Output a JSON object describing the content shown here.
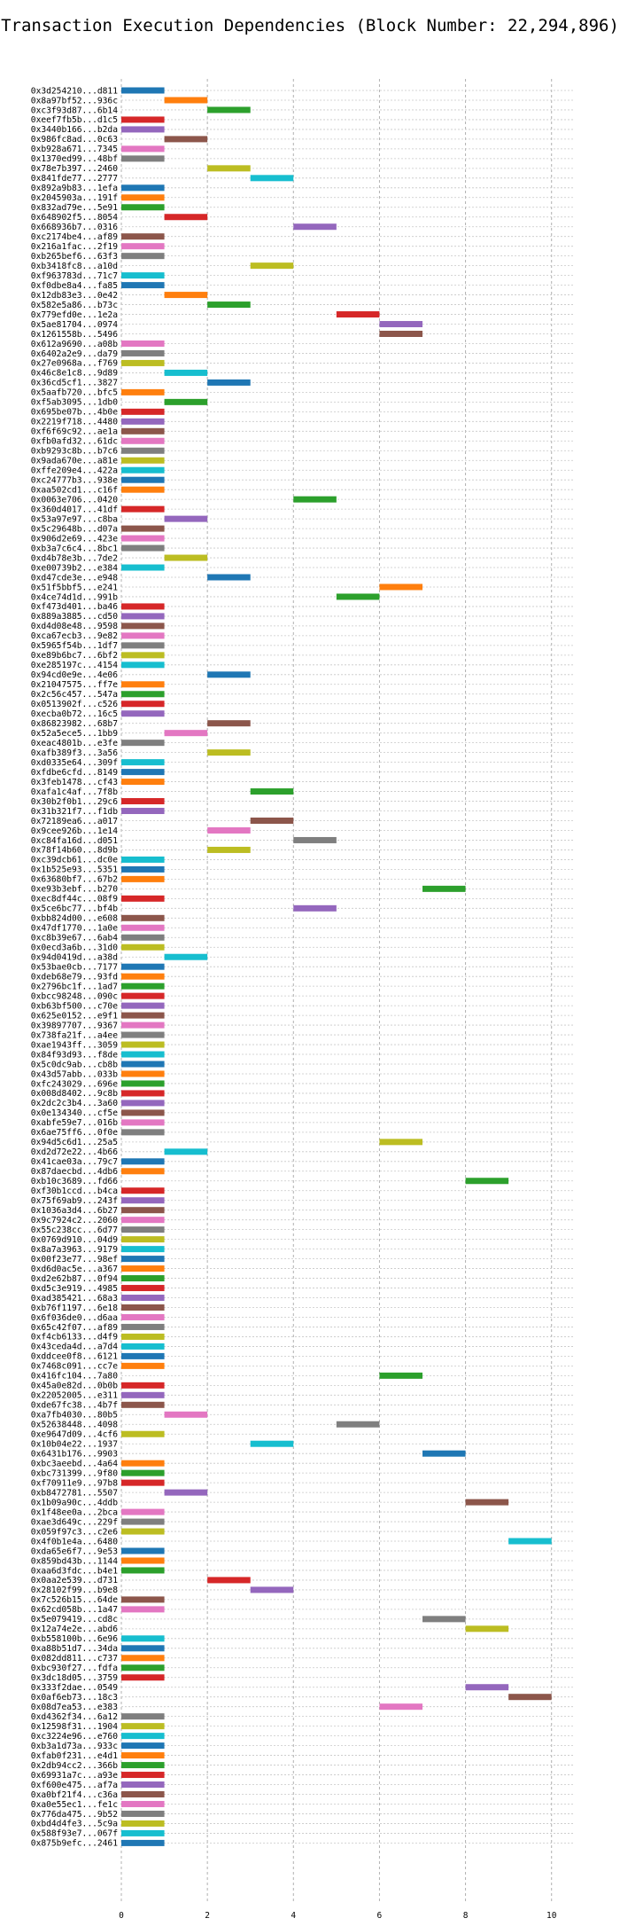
{
  "chart_data": {
    "type": "bar",
    "orientation": "horizontal-gantt",
    "title": "Transaction Execution Dependencies (Block Number: 22,294,896)",
    "xlabel": "",
    "ylabel": "",
    "xlim": [
      0,
      10.5
    ],
    "xticks": [
      0,
      2,
      4,
      6,
      8,
      10
    ],
    "grid": "vertical dashed",
    "palette": [
      "#1f77b4",
      "#ff7f0e",
      "#2ca02c",
      "#d62728",
      "#9467bd",
      "#8c564b",
      "#e377c2",
      "#7f7f7f",
      "#bcbd22",
      "#17becf"
    ],
    "transactions": [
      {
        "label": "0x3d254210...d811",
        "start": 0,
        "end": 1
      },
      {
        "label": "0x8a97bf52...936c",
        "start": 1,
        "end": 2
      },
      {
        "label": "0xc3f93d87...6b14",
        "start": 2,
        "end": 3
      },
      {
        "label": "0xeef7fb5b...d1c5",
        "start": 0,
        "end": 1
      },
      {
        "label": "0x3440b166...b2da",
        "start": 0,
        "end": 1
      },
      {
        "label": "0x986fc8ad...0c63",
        "start": 1,
        "end": 2
      },
      {
        "label": "0xb928a671...7345",
        "start": 0,
        "end": 1
      },
      {
        "label": "0x1370ed99...48bf",
        "start": 0,
        "end": 1
      },
      {
        "label": "0x78e7b397...2460",
        "start": 2,
        "end": 3
      },
      {
        "label": "0x841fde77...2777",
        "start": 3,
        "end": 4
      },
      {
        "label": "0x892a9b83...1efa",
        "start": 0,
        "end": 1
      },
      {
        "label": "0x2045903a...191f",
        "start": 0,
        "end": 1
      },
      {
        "label": "0x832ad79e...5e91",
        "start": 0,
        "end": 1
      },
      {
        "label": "0x648902f5...8054",
        "start": 1,
        "end": 2
      },
      {
        "label": "0x668936b7...0316",
        "start": 4,
        "end": 5
      },
      {
        "label": "0xc2174be4...af89",
        "start": 0,
        "end": 1
      },
      {
        "label": "0x216a1fac...2f19",
        "start": 0,
        "end": 1
      },
      {
        "label": "0xb265bef6...63f3",
        "start": 0,
        "end": 1
      },
      {
        "label": "0xb3418fc8...a10d",
        "start": 3,
        "end": 4
      },
      {
        "label": "0xf963783d...71c7",
        "start": 0,
        "end": 1
      },
      {
        "label": "0xf0dbe8a4...fa85",
        "start": 0,
        "end": 1
      },
      {
        "label": "0x12db83e3...0e42",
        "start": 1,
        "end": 2
      },
      {
        "label": "0x582e5a86...b73c",
        "start": 2,
        "end": 3
      },
      {
        "label": "0x779efd0e...1e2a",
        "start": 5,
        "end": 6
      },
      {
        "label": "0x5ae81704...0974",
        "start": 6,
        "end": 7
      },
      {
        "label": "0x1261558b...5496",
        "start": 6,
        "end": 7
      },
      {
        "label": "0x612a9690...a08b",
        "start": 0,
        "end": 1
      },
      {
        "label": "0x6402a2e9...da79",
        "start": 0,
        "end": 1
      },
      {
        "label": "0x27e0968a...f769",
        "start": 0,
        "end": 1
      },
      {
        "label": "0x46c8e1c8...9d89",
        "start": 1,
        "end": 2
      },
      {
        "label": "0x36cd5cf1...3827",
        "start": 2,
        "end": 3
      },
      {
        "label": "0x5aafb720...bfc5",
        "start": 0,
        "end": 1
      },
      {
        "label": "0xf5ab3095...1db0",
        "start": 1,
        "end": 2
      },
      {
        "label": "0x695be07b...4b0e",
        "start": 0,
        "end": 1
      },
      {
        "label": "0x2219f718...4480",
        "start": 0,
        "end": 1
      },
      {
        "label": "0xf6f69c92...ae1a",
        "start": 0,
        "end": 1
      },
      {
        "label": "0xfb0afd32...61dc",
        "start": 0,
        "end": 1
      },
      {
        "label": "0xb9293c8b...b7c6",
        "start": 0,
        "end": 1
      },
      {
        "label": "0x9ada670e...a81e",
        "start": 0,
        "end": 1
      },
      {
        "label": "0xffe209e4...422a",
        "start": 0,
        "end": 1
      },
      {
        "label": "0xc24777b3...938e",
        "start": 0,
        "end": 1
      },
      {
        "label": "0xaa502cd1...c16f",
        "start": 0,
        "end": 1
      },
      {
        "label": "0x0063e706...0420",
        "start": 4,
        "end": 5
      },
      {
        "label": "0x360d4017...41df",
        "start": 0,
        "end": 1
      },
      {
        "label": "0x53a97e97...c8ba",
        "start": 1,
        "end": 2
      },
      {
        "label": "0x5c29648b...d07a",
        "start": 0,
        "end": 1
      },
      {
        "label": "0x906d2e69...423e",
        "start": 0,
        "end": 1
      },
      {
        "label": "0xb3a7c6c4...8bc1",
        "start": 0,
        "end": 1
      },
      {
        "label": "0xd4b78e3b...7de2",
        "start": 1,
        "end": 2
      },
      {
        "label": "0xe00739b2...e384",
        "start": 0,
        "end": 1
      },
      {
        "label": "0xd47cde3e...e948",
        "start": 2,
        "end": 3
      },
      {
        "label": "0x51f5bbf5...e241",
        "start": 6,
        "end": 7
      },
      {
        "label": "0x4ce74d1d...991b",
        "start": 5,
        "end": 6
      },
      {
        "label": "0xf473d401...ba46",
        "start": 0,
        "end": 1
      },
      {
        "label": "0x889a3885...cd50",
        "start": 0,
        "end": 1
      },
      {
        "label": "0xd4d08e48...9598",
        "start": 0,
        "end": 1
      },
      {
        "label": "0xca67ecb3...9e82",
        "start": 0,
        "end": 1
      },
      {
        "label": "0x5965f54b...1df7",
        "start": 0,
        "end": 1
      },
      {
        "label": "0xe89b6bc7...6bf2",
        "start": 0,
        "end": 1
      },
      {
        "label": "0xe285197c...4154",
        "start": 0,
        "end": 1
      },
      {
        "label": "0x94cd0e9e...4e06",
        "start": 2,
        "end": 3
      },
      {
        "label": "0x21047575...ff7e",
        "start": 0,
        "end": 1
      },
      {
        "label": "0x2c56c457...547a",
        "start": 0,
        "end": 1
      },
      {
        "label": "0x0513902f...c526",
        "start": 0,
        "end": 1
      },
      {
        "label": "0xecba0b72...16c5",
        "start": 0,
        "end": 1
      },
      {
        "label": "0x86823982...68b7",
        "start": 2,
        "end": 3
      },
      {
        "label": "0x52a5ece5...1bb9",
        "start": 1,
        "end": 2
      },
      {
        "label": "0xeac4801b...e3fe",
        "start": 0,
        "end": 1
      },
      {
        "label": "0xafb389f3...3a56",
        "start": 2,
        "end": 3
      },
      {
        "label": "0xd0335e64...309f",
        "start": 0,
        "end": 1
      },
      {
        "label": "0xfdbe6cfd...8149",
        "start": 0,
        "end": 1
      },
      {
        "label": "0x3feb1478...cf43",
        "start": 0,
        "end": 1
      },
      {
        "label": "0xafa1c4af...7f8b",
        "start": 3,
        "end": 4
      },
      {
        "label": "0x30b2f0b1...29c6",
        "start": 0,
        "end": 1
      },
      {
        "label": "0x31b321f7...f1db",
        "start": 0,
        "end": 1
      },
      {
        "label": "0x72189ea6...a017",
        "start": 3,
        "end": 4
      },
      {
        "label": "0x9cee926b...1e14",
        "start": 2,
        "end": 3
      },
      {
        "label": "0xc84fa16d...d051",
        "start": 4,
        "end": 5
      },
      {
        "label": "0x78f14b60...8d9b",
        "start": 2,
        "end": 3
      },
      {
        "label": "0xc39dcb61...dc0e",
        "start": 0,
        "end": 1
      },
      {
        "label": "0x1b525e93...5351",
        "start": 0,
        "end": 1
      },
      {
        "label": "0x63680bf7...67b2",
        "start": 0,
        "end": 1
      },
      {
        "label": "0xe93b3ebf...b270",
        "start": 7,
        "end": 8
      },
      {
        "label": "0xec8df44c...08f9",
        "start": 0,
        "end": 1
      },
      {
        "label": "0x5ce6bc77...bf4b",
        "start": 4,
        "end": 5
      },
      {
        "label": "0xbb824d00...e608",
        "start": 0,
        "end": 1
      },
      {
        "label": "0x47df1770...1a0e",
        "start": 0,
        "end": 1
      },
      {
        "label": "0xc8b39e67...6ab4",
        "start": 0,
        "end": 1
      },
      {
        "label": "0x0ecd3a6b...31d0",
        "start": 0,
        "end": 1
      },
      {
        "label": "0x94d0419d...a38d",
        "start": 1,
        "end": 2
      },
      {
        "label": "0x53bae0cb...7177",
        "start": 0,
        "end": 1
      },
      {
        "label": "0xdeb68e79...93fd",
        "start": 0,
        "end": 1
      },
      {
        "label": "0x2796bc1f...1ad7",
        "start": 0,
        "end": 1
      },
      {
        "label": "0xbcc98248...090c",
        "start": 0,
        "end": 1
      },
      {
        "label": "0xb63bf500...c70e",
        "start": 0,
        "end": 1
      },
      {
        "label": "0x625e0152...e9f1",
        "start": 0,
        "end": 1
      },
      {
        "label": "0x39897707...9367",
        "start": 0,
        "end": 1
      },
      {
        "label": "0x738fa21f...a4ee",
        "start": 0,
        "end": 1
      },
      {
        "label": "0xae1943ff...3059",
        "start": 0,
        "end": 1
      },
      {
        "label": "0x84f93d93...f8de",
        "start": 0,
        "end": 1
      },
      {
        "label": "0x5c0dc9ab...cb8b",
        "start": 0,
        "end": 1
      },
      {
        "label": "0x43d57abb...033b",
        "start": 0,
        "end": 1
      },
      {
        "label": "0xfc243029...696e",
        "start": 0,
        "end": 1
      },
      {
        "label": "0x008d8402...9c8b",
        "start": 0,
        "end": 1
      },
      {
        "label": "0x2dc2c3b4...3a60",
        "start": 0,
        "end": 1
      },
      {
        "label": "0x0e134340...cf5e",
        "start": 0,
        "end": 1
      },
      {
        "label": "0xabfe59e7...016b",
        "start": 0,
        "end": 1
      },
      {
        "label": "0x6ae75ff6...0f0e",
        "start": 0,
        "end": 1
      },
      {
        "label": "0x94d5c6d1...25a5",
        "start": 6,
        "end": 7
      },
      {
        "label": "0xd2d72e22...4b66",
        "start": 1,
        "end": 2
      },
      {
        "label": "0x41cae03a...79c7",
        "start": 0,
        "end": 1
      },
      {
        "label": "0x87daecbd...4db6",
        "start": 0,
        "end": 1
      },
      {
        "label": "0xb10c3689...fd66",
        "start": 8,
        "end": 9
      },
      {
        "label": "0xf30b1ccd...b4ca",
        "start": 0,
        "end": 1
      },
      {
        "label": "0x75f69ab9...243f",
        "start": 0,
        "end": 1
      },
      {
        "label": "0x1036a3d4...6b27",
        "start": 0,
        "end": 1
      },
      {
        "label": "0x9c7924c2...2060",
        "start": 0,
        "end": 1
      },
      {
        "label": "0x55c238cc...6d77",
        "start": 0,
        "end": 1
      },
      {
        "label": "0x0769d910...04d9",
        "start": 0,
        "end": 1
      },
      {
        "label": "0x8a7a3963...9179",
        "start": 0,
        "end": 1
      },
      {
        "label": "0x00f23e77...98ef",
        "start": 0,
        "end": 1
      },
      {
        "label": "0xd6d0ac5e...a367",
        "start": 0,
        "end": 1
      },
      {
        "label": "0xd2e62b87...0f94",
        "start": 0,
        "end": 1
      },
      {
        "label": "0xd5c3e919...4985",
        "start": 0,
        "end": 1
      },
      {
        "label": "0xad385421...68a3",
        "start": 0,
        "end": 1
      },
      {
        "label": "0xb76f1197...6e18",
        "start": 0,
        "end": 1
      },
      {
        "label": "0x6f036de0...d6aa",
        "start": 0,
        "end": 1
      },
      {
        "label": "0x65c42f07...af89",
        "start": 0,
        "end": 1
      },
      {
        "label": "0xf4cb6133...d4f9",
        "start": 0,
        "end": 1
      },
      {
        "label": "0x43ceda4d...a7d4",
        "start": 0,
        "end": 1
      },
      {
        "label": "0xddcee0f8...6121",
        "start": 0,
        "end": 1
      },
      {
        "label": "0x7468c091...cc7e",
        "start": 0,
        "end": 1
      },
      {
        "label": "0x416fc104...7a80",
        "start": 6,
        "end": 7
      },
      {
        "label": "0x45a0e82d...0b0b",
        "start": 0,
        "end": 1
      },
      {
        "label": "0x22052005...e311",
        "start": 0,
        "end": 1
      },
      {
        "label": "0xde67fc38...4b7f",
        "start": 0,
        "end": 1
      },
      {
        "label": "0xa7fb4030...80b5",
        "start": 1,
        "end": 2
      },
      {
        "label": "0x52638448...4098",
        "start": 5,
        "end": 6
      },
      {
        "label": "0xe9647d09...4cf6",
        "start": 0,
        "end": 1
      },
      {
        "label": "0x10b04e22...1937",
        "start": 3,
        "end": 4
      },
      {
        "label": "0x6431b176...9903",
        "start": 7,
        "end": 8
      },
      {
        "label": "0xbc3aeebd...4a64",
        "start": 0,
        "end": 1
      },
      {
        "label": "0xbc731399...9f80",
        "start": 0,
        "end": 1
      },
      {
        "label": "0xf70911e9...97b8",
        "start": 0,
        "end": 1
      },
      {
        "label": "0xb8472781...5507",
        "start": 1,
        "end": 2
      },
      {
        "label": "0x1b09a90c...4ddb",
        "start": 8,
        "end": 9
      },
      {
        "label": "0x1f48ee0a...2bca",
        "start": 0,
        "end": 1
      },
      {
        "label": "0xae3d649c...229f",
        "start": 0,
        "end": 1
      },
      {
        "label": "0x059f97c3...c2e6",
        "start": 0,
        "end": 1
      },
      {
        "label": "0x4f0b1e4a...6480",
        "start": 9,
        "end": 10
      },
      {
        "label": "0xda65e6f7...9e53",
        "start": 0,
        "end": 1
      },
      {
        "label": "0x859bd43b...1144",
        "start": 0,
        "end": 1
      },
      {
        "label": "0xaa6d3fdc...b4e1",
        "start": 0,
        "end": 1
      },
      {
        "label": "0x0aa2e539...d731",
        "start": 2,
        "end": 3
      },
      {
        "label": "0x28102f99...b9e8",
        "start": 3,
        "end": 4
      },
      {
        "label": "0x7c526b15...64de",
        "start": 0,
        "end": 1
      },
      {
        "label": "0x62cd058b...1a47",
        "start": 0,
        "end": 1
      },
      {
        "label": "0x5e079419...cd8c",
        "start": 7,
        "end": 8
      },
      {
        "label": "0x12a74e2e...abd6",
        "start": 8,
        "end": 9
      },
      {
        "label": "0xb558100b...6e96",
        "start": 0,
        "end": 1
      },
      {
        "label": "0xa88b51d7...34da",
        "start": 0,
        "end": 1
      },
      {
        "label": "0x082dd811...c737",
        "start": 0,
        "end": 1
      },
      {
        "label": "0xbc930f27...fdfa",
        "start": 0,
        "end": 1
      },
      {
        "label": "0x3dc18d05...3759",
        "start": 0,
        "end": 1
      },
      {
        "label": "0x333f2dae...0549",
        "start": 8,
        "end": 9
      },
      {
        "label": "0x0af6eb73...18c3",
        "start": 9,
        "end": 10
      },
      {
        "label": "0x08d7ea53...e383",
        "start": 6,
        "end": 7
      },
      {
        "label": "0xd4362f34...6a12",
        "start": 0,
        "end": 1
      },
      {
        "label": "0x12598f31...1904",
        "start": 0,
        "end": 1
      },
      {
        "label": "0xc3224e96...e760",
        "start": 0,
        "end": 1
      },
      {
        "label": "0xb3a1d73a...933c",
        "start": 0,
        "end": 1
      },
      {
        "label": "0xfab0f231...e4d1",
        "start": 0,
        "end": 1
      },
      {
        "label": "0x2db94cc2...366b",
        "start": 0,
        "end": 1
      },
      {
        "label": "0x69931a7c...a93e",
        "start": 0,
        "end": 1
      },
      {
        "label": "0xf600e475...af7a",
        "start": 0,
        "end": 1
      },
      {
        "label": "0xa0bf21f4...c36a",
        "start": 0,
        "end": 1
      },
      {
        "label": "0xa0e55ec1...fe1c",
        "start": 0,
        "end": 1
      },
      {
        "label": "0x776da475...9b52",
        "start": 0,
        "end": 1
      },
      {
        "label": "0xbd4d4fe3...5c9a",
        "start": 0,
        "end": 1
      },
      {
        "label": "0x588f93e7...067f",
        "start": 0,
        "end": 1
      },
      {
        "label": "0x875b9efc...2461",
        "start": 0,
        "end": 1
      }
    ]
  }
}
